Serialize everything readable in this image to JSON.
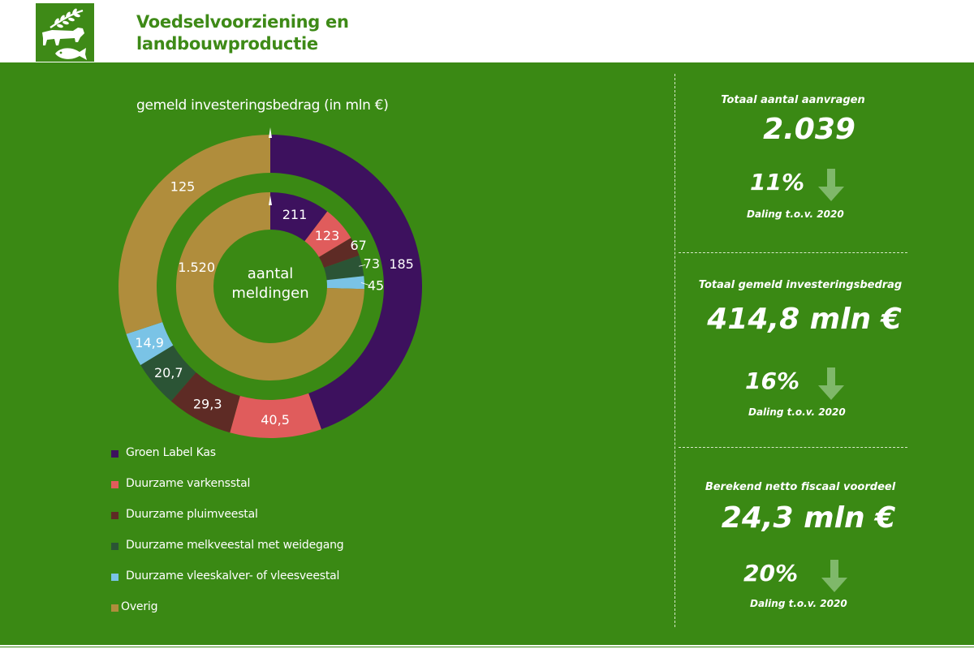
{
  "header": {
    "title_line1": "Voedselvoorziening en",
    "title_line2": "landbouwproductie",
    "logo_icon": "agriculture-livestock-fish-icon"
  },
  "colors": {
    "background": "#3a8914",
    "header_text": "#3e8a17",
    "arrow": "#7fb86a"
  },
  "chart_data": {
    "type": "pie",
    "title": "gemeld investeringsbedrag (in mln €)",
    "center_label_line1": "aantal",
    "center_label_line2": "meldingen",
    "categories": [
      "Groen Label Kas",
      "Duurzame varkensstal",
      "Duurzame pluimveestal",
      "Duurzame melkveestal met weidegang",
      "Duurzame vleeskalver- of vleesveestal",
      "Overig"
    ],
    "category_colors": [
      "#3d115e",
      "#e05c5c",
      "#5e2b25",
      "#2b5435",
      "#7ac3e6",
      "#b08d3c"
    ],
    "series": [
      {
        "name": "gemeld investeringsbedrag (in mln €)",
        "ring": "outer",
        "values": [
          185,
          40.5,
          29.3,
          20.7,
          14.9,
          125
        ],
        "labels": [
          "185",
          "40,5",
          "29,3",
          "20,7",
          "14,9",
          "125"
        ]
      },
      {
        "name": "aantal meldingen",
        "ring": "inner",
        "values": [
          211,
          123,
          67,
          73,
          45,
          1520
        ],
        "labels": [
          "211",
          "123",
          "67",
          "73",
          "45",
          "1.520"
        ]
      }
    ],
    "legend_position": "bottom-left"
  },
  "stats": [
    {
      "label": "Totaal aantal aanvragen",
      "value": "2.039",
      "percent": "11%",
      "note": "Daling t.o.v. 2020",
      "icon": "arrow-down-icon"
    },
    {
      "label": "Totaal gemeld investeringsbedrag",
      "value": "414,8 mln €",
      "percent": "16%",
      "note": "Daling t.o.v. 2020",
      "icon": "arrow-down-icon"
    },
    {
      "label": "Berekend netto fiscaal voordeel",
      "value": "24,3 mln €",
      "percent": "20%",
      "note": "Daling t.o.v. 2020",
      "icon": "arrow-down-icon"
    }
  ]
}
